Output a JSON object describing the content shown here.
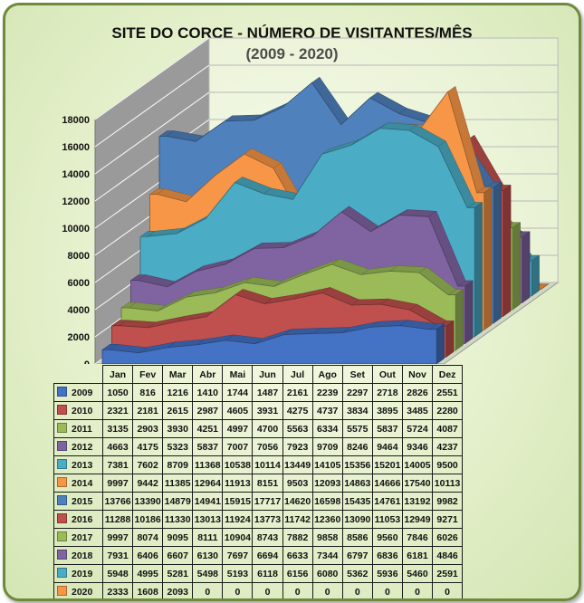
{
  "chart_data": {
    "type": "area",
    "title": "SITE DO CORCE - NÚMERO DE VISITANTES/MÊS",
    "subtitle": "(2009 - 2020)",
    "categories": [
      "Jan",
      "Fev",
      "Mar",
      "Abr",
      "Mai",
      "Jun",
      "Jul",
      "Ago",
      "Set",
      "Out",
      "Nov",
      "Dez"
    ],
    "ylim": [
      0,
      18000
    ],
    "yticks": [
      "0",
      "2000",
      "4000",
      "6000",
      "8000",
      "10000",
      "12000",
      "14000",
      "16000",
      "18000"
    ],
    "legend_placement": "data-table-bottom",
    "series": [
      {
        "name": "2009",
        "color": "#4472c4",
        "values": [
          1050,
          816,
          1216,
          1410,
          1744,
          1487,
          2161,
          2239,
          2297,
          2718,
          2826,
          2551
        ]
      },
      {
        "name": "2010",
        "color": "#c0504d",
        "values": [
          2321,
          2181,
          2615,
          2987,
          4605,
          3931,
          4275,
          4737,
          3834,
          3895,
          3485,
          2280
        ]
      },
      {
        "name": "2011",
        "color": "#9bbb59",
        "values": [
          3135,
          2903,
          3930,
          4251,
          4997,
          4700,
          5563,
          6334,
          5575,
          5837,
          5724,
          4087
        ]
      },
      {
        "name": "2012",
        "color": "#8064a2",
        "values": [
          4663,
          4175,
          5323,
          5837,
          7007,
          7056,
          7923,
          9709,
          8246,
          9464,
          9346,
          4237
        ]
      },
      {
        "name": "2013",
        "color": "#4bacc6",
        "values": [
          7381,
          7602,
          8709,
          11368,
          10538,
          10114,
          13449,
          14105,
          15356,
          15201,
          14005,
          9500
        ]
      },
      {
        "name": "2014",
        "color": "#f79646",
        "values": [
          9997,
          9442,
          11385,
          12964,
          11913,
          8151,
          9503,
          12093,
          14863,
          14666,
          17540,
          10113
        ]
      },
      {
        "name": "2015",
        "color": "#4f81bd",
        "values": [
          13766,
          13390,
          14879,
          14941,
          15915,
          17717,
          14620,
          16598,
          15435,
          14761,
          13192,
          9982
        ]
      },
      {
        "name": "2016",
        "color": "#c0504d",
        "values": [
          11288,
          10186,
          11330,
          13013,
          11924,
          13773,
          11742,
          12360,
          13090,
          11053,
          12949,
          9271
        ]
      },
      {
        "name": "2017",
        "color": "#9bbb59",
        "values": [
          9997,
          8074,
          9095,
          8111,
          10904,
          8743,
          7882,
          9858,
          8586,
          9560,
          7846,
          6026
        ]
      },
      {
        "name": "2018",
        "color": "#8064a2",
        "values": [
          7931,
          6406,
          6607,
          6130,
          7697,
          6694,
          6633,
          7344,
          6797,
          6836,
          6181,
          4846
        ]
      },
      {
        "name": "2019",
        "color": "#4bacc6",
        "values": [
          5948,
          4995,
          5281,
          5498,
          5193,
          6118,
          6156,
          6080,
          5362,
          5936,
          5460,
          2591
        ]
      },
      {
        "name": "2020",
        "color": "#f79646",
        "values": [
          2333,
          1608,
          2093,
          0,
          0,
          0,
          0,
          0,
          0,
          0,
          0,
          0
        ]
      }
    ]
  }
}
